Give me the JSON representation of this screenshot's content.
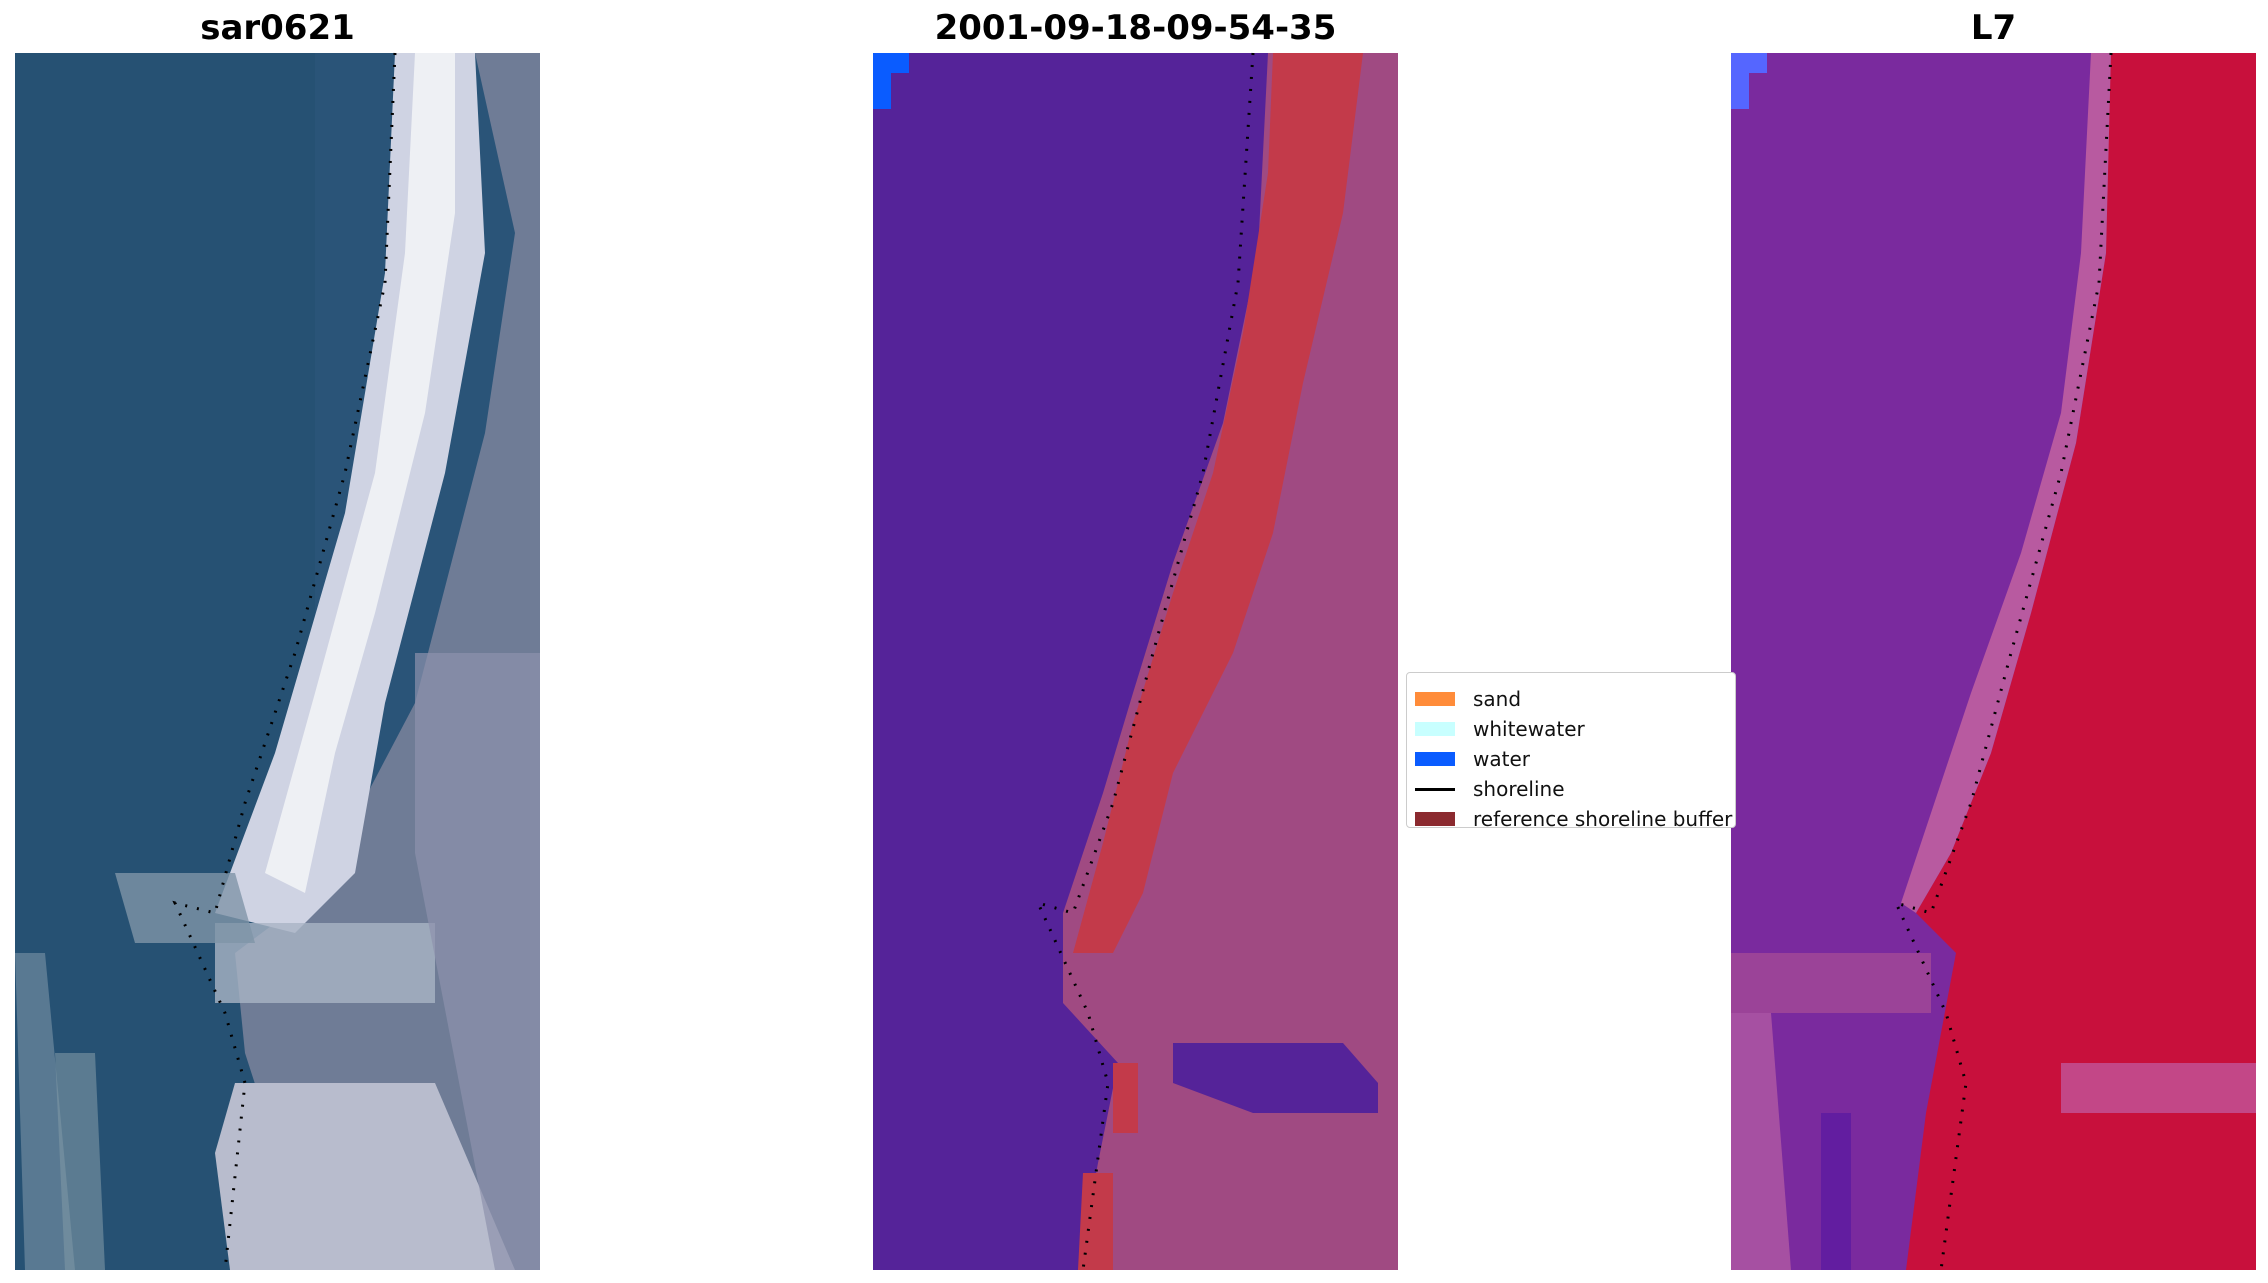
{
  "panels": [
    {
      "id": "rgb",
      "title": "sar0621"
    },
    {
      "id": "class",
      "title": "2001-09-18-09-54-35"
    },
    {
      "id": "ndwi",
      "title": "L7"
    }
  ],
  "legend": {
    "items": [
      {
        "label": "sand",
        "color": "#ff8c3a",
        "type": "patch"
      },
      {
        "label": "whitewater",
        "color": "#c8ffff",
        "type": "patch"
      },
      {
        "label": "water",
        "color": "#0a5cff",
        "type": "patch"
      },
      {
        "label": "shoreline",
        "color": "#000000",
        "type": "line"
      },
      {
        "label": "reference shoreline buffer",
        "color": "#8b2a2f",
        "type": "patch"
      }
    ]
  },
  "colors": {
    "ocean_rgb": "#2a5478",
    "surf_rgb": "#d9dce8",
    "land_rgb": "#6f7c96",
    "water_class": "#552399",
    "sand_class": "#c33a4a",
    "land_class": "#a04a82",
    "water_index": "#7a2a9e",
    "land_index": "#c8103c",
    "shoreline": "#000000"
  }
}
